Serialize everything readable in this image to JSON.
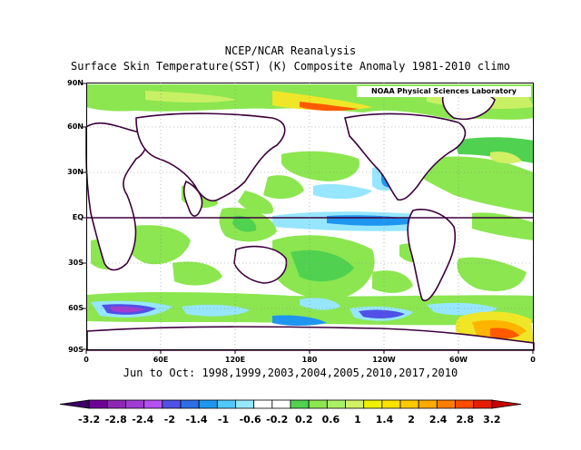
{
  "title_line1": "NCEP/NCAR Reanalysis",
  "title_line2": "Surface Skin Temperature(SST) (K) Composite Anomaly 1981-2010 climo",
  "credit": "NOAA Physical Sciences Laboratory",
  "caption": "Jun to Oct: 1998,1999,2003,2004,2005,2010,2017,2010",
  "lat_labels": [
    "90N",
    "60N",
    "30N",
    "EQ",
    "30S",
    "60S",
    "90S"
  ],
  "lon_labels": [
    "0",
    "60E",
    "120E",
    "180",
    "120W",
    "60W",
    "0"
  ],
  "colorbar": {
    "labels": [
      "-3.2",
      "-2.8",
      "-2.4",
      "-2",
      "-1.4",
      "-1",
      "-0.6",
      "-0.2",
      "0.2",
      "0.6",
      "1",
      "1.4",
      "2",
      "2.4",
      "2.8",
      "3.2"
    ],
    "colors": [
      "#3c0064",
      "#6e0096",
      "#8c28b4",
      "#a03cd2",
      "#b450f0",
      "#5050e6",
      "#2d6ee6",
      "#1e96f0",
      "#50c8fa",
      "#96e6ff",
      "#ffffff",
      "#ffffff",
      "#50d250",
      "#8ce650",
      "#aaf064",
      "#d2f064",
      "#f0f000",
      "#ffe100",
      "#ffc800",
      "#ffaa00",
      "#ff7d00",
      "#ff4b00",
      "#e61e00",
      "#c80000"
    ]
  },
  "map_colors": {
    "land": "#ffffff",
    "coast": "#3c003c",
    "light_green": "#8ce650",
    "green": "#50d250",
    "yellow_green": "#c8f064",
    "yellow": "#f0e628",
    "orange": "#ffb400",
    "red": "#ff5a00",
    "light_blue": "#96e6ff",
    "blue": "#1e96f0",
    "purple": "#a03cd2"
  }
}
